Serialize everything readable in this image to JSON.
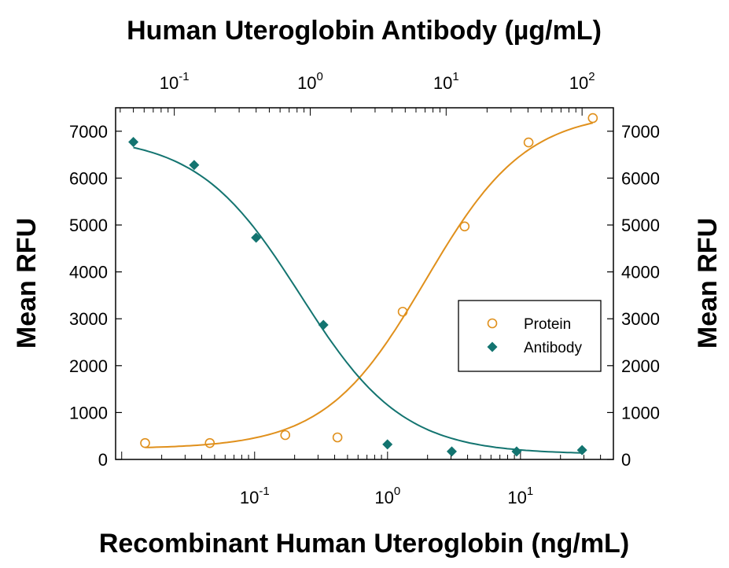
{
  "chart_data": {
    "type": "scatter",
    "title": "",
    "top_axis_label": "Human Uteroglobin Antibody (µg/mL)",
    "bottom_axis_label": "Recombinant Human Uteroglobin (ng/mL)",
    "left_axis_label": "Mean RFU",
    "right_axis_label": "Mean RFU",
    "bottom_axis": {
      "scale": "log",
      "range": [
        0.009,
        50
      ],
      "ticks": [
        0.1,
        1,
        10
      ],
      "tick_labels": [
        "10",
        "10",
        "10"
      ],
      "tick_exponents": [
        "-1",
        "0",
        "1"
      ]
    },
    "top_axis": {
      "scale": "log",
      "range": [
        0.037,
        170
      ],
      "ticks": [
        0.1,
        1,
        10,
        100
      ],
      "tick_labels": [
        "10",
        "10",
        "10",
        "10"
      ],
      "tick_exponents": [
        "-1",
        "0",
        "1",
        "2"
      ]
    },
    "y_axis": {
      "range": [
        0,
        7500
      ],
      "ticks": [
        0,
        1000,
        2000,
        3000,
        4000,
        5000,
        6000,
        7000
      ],
      "tick_labels": [
        "0",
        "1000",
        "2000",
        "3000",
        "4000",
        "5000",
        "6000",
        "7000"
      ]
    },
    "series": [
      {
        "name": "Protein",
        "axis": "bottom",
        "color": "#e0901c",
        "marker": "open-circle",
        "x": [
          0.015,
          0.046,
          0.17,
          0.42,
          1.3,
          3.8,
          11.5,
          35
        ],
        "y": [
          350,
          350,
          520,
          470,
          3150,
          4970,
          6760,
          7280
        ]
      },
      {
        "name": "Antibody",
        "axis": "top",
        "color": "#137470",
        "marker": "filled-diamond",
        "x": [
          0.05,
          0.14,
          0.4,
          1.25,
          3.7,
          11,
          33,
          100
        ],
        "y": [
          6770,
          6280,
          4730,
          2870,
          320,
          170,
          170,
          200
        ]
      }
    ],
    "legend": {
      "position": "right-center",
      "items": [
        "Protein",
        "Antibody"
      ]
    }
  }
}
